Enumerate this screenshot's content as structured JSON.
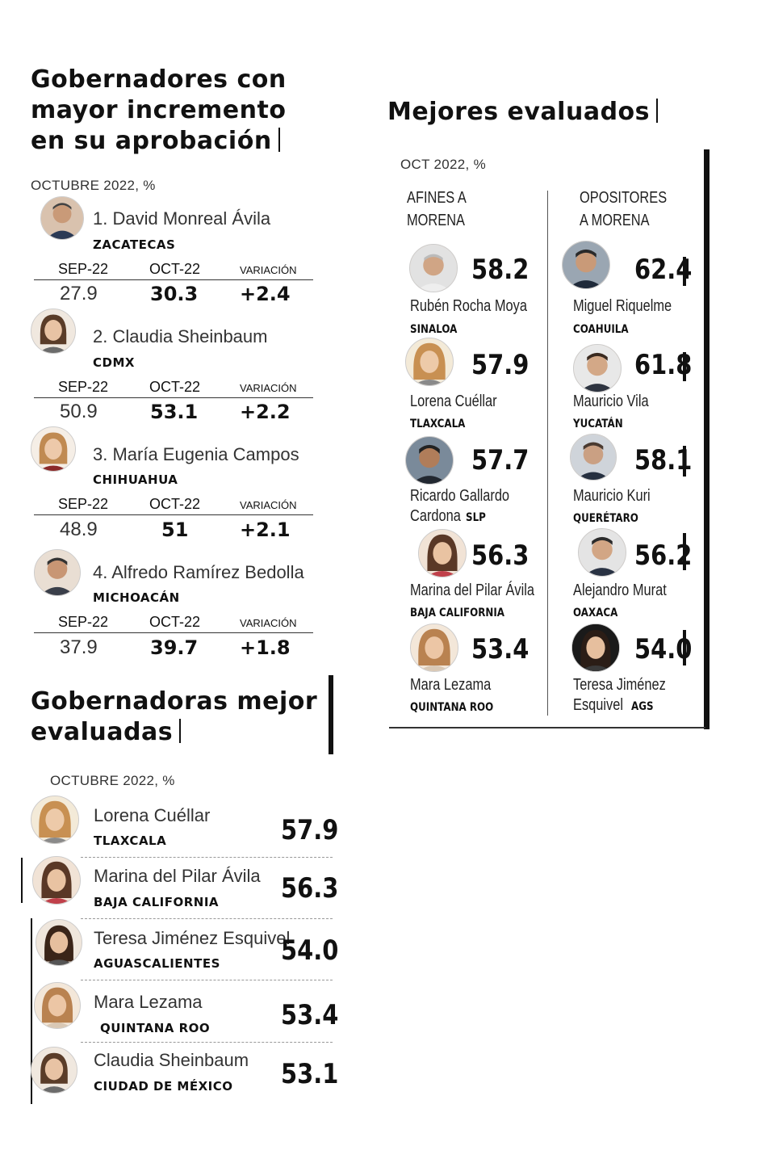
{
  "incremento": {
    "title_l1": "Gobernadores con",
    "title_l2": "mayor incremento",
    "title_l3": "en su aprobación",
    "subtitle": "OCTUBRE 2022, %",
    "col_sep": "SEP-22",
    "col_oct": "OCT-22",
    "col_var": "VARIACIÓN",
    "items": [
      {
        "name": "1. David Monreal Ávila",
        "state": "ZACATECAS",
        "sep": "27.9",
        "oct": "30.3",
        "var": "+2.4"
      },
      {
        "name": "2. Claudia Sheinbaum",
        "state": "CDMX",
        "sep": "50.9",
        "oct": "53.1",
        "var": "+2.2"
      },
      {
        "name": "3. María Eugenia Campos",
        "state": "CHIHUAHUA",
        "sep": "48.9",
        "oct": "51",
        "var": "+2.1"
      },
      {
        "name": "4. Alfredo Ramírez Bedolla",
        "state": "MICHOACÁN",
        "sep": "37.9",
        "oct": "39.7",
        "var": "+1.8"
      }
    ]
  },
  "mejores": {
    "title": "Mejores evaluados",
    "subtitle": "OCT 2022, %",
    "col_afines_l1": "AFINES A",
    "col_afines_l2": "MORENA",
    "col_opos_l1": "OPOSITORES",
    "col_opos_l2": "A MORENA",
    "afines": [
      {
        "name": "Rubén Rocha Moya",
        "state": "SINALOA",
        "score": "58.2"
      },
      {
        "name": "Lorena Cuéllar",
        "state": "TLAXCALA",
        "score": "57.9"
      },
      {
        "name_l1": "Ricardo Gallardo",
        "name_l2": "Cardona",
        "state": "SLP",
        "score": "57.7"
      },
      {
        "name": "Marina del Pilar Ávila",
        "state": "BAJA CALIFORNIA",
        "score": "56.3"
      },
      {
        "name": "Mara Lezama",
        "state": "QUINTANA ROO",
        "score": "53.4"
      }
    ],
    "opositores": [
      {
        "name": "Miguel Riquelme",
        "state": "COAHUILA",
        "score": "62.4"
      },
      {
        "name": "Mauricio Vila",
        "state": "YUCATÁN",
        "score": "61.8"
      },
      {
        "name": "Mauricio Kuri",
        "state": "QUERÉTARO",
        "score": "58.1"
      },
      {
        "name": "Alejandro Murat",
        "state": "OAXACA",
        "score": "56.2"
      },
      {
        "name_l1": "Teresa Jiménez",
        "name_l2": "Esquivel",
        "state": "AGS",
        "score": "54.0"
      }
    ]
  },
  "gobernadoras": {
    "title_l1": "Gobernadoras mejor",
    "title_l2": "evaluadas",
    "subtitle": "OCTUBRE 2022, %",
    "items": [
      {
        "name": "Lorena Cuéllar",
        "state": "TLAXCALA",
        "score": "57.9"
      },
      {
        "name": "Marina del Pilar Ávila",
        "state": "BAJA CALIFORNIA",
        "score": "56.3"
      },
      {
        "name": "Teresa Jiménez Esquivel",
        "state": "AGUASCALIENTES",
        "score": "54.0"
      },
      {
        "name": "Mara Lezama",
        "state": "QUINTANA ROO",
        "score": "53.4"
      },
      {
        "name": "Claudia Sheinbaum",
        "state": "CIUDAD DE MÉXICO",
        "score": "53.1"
      }
    ]
  },
  "colors": {
    "text": "#111111",
    "muted": "#333333",
    "skin": "#f3d7c2",
    "hair_dark": "#3a2a20",
    "hair_light": "#b07a45"
  }
}
